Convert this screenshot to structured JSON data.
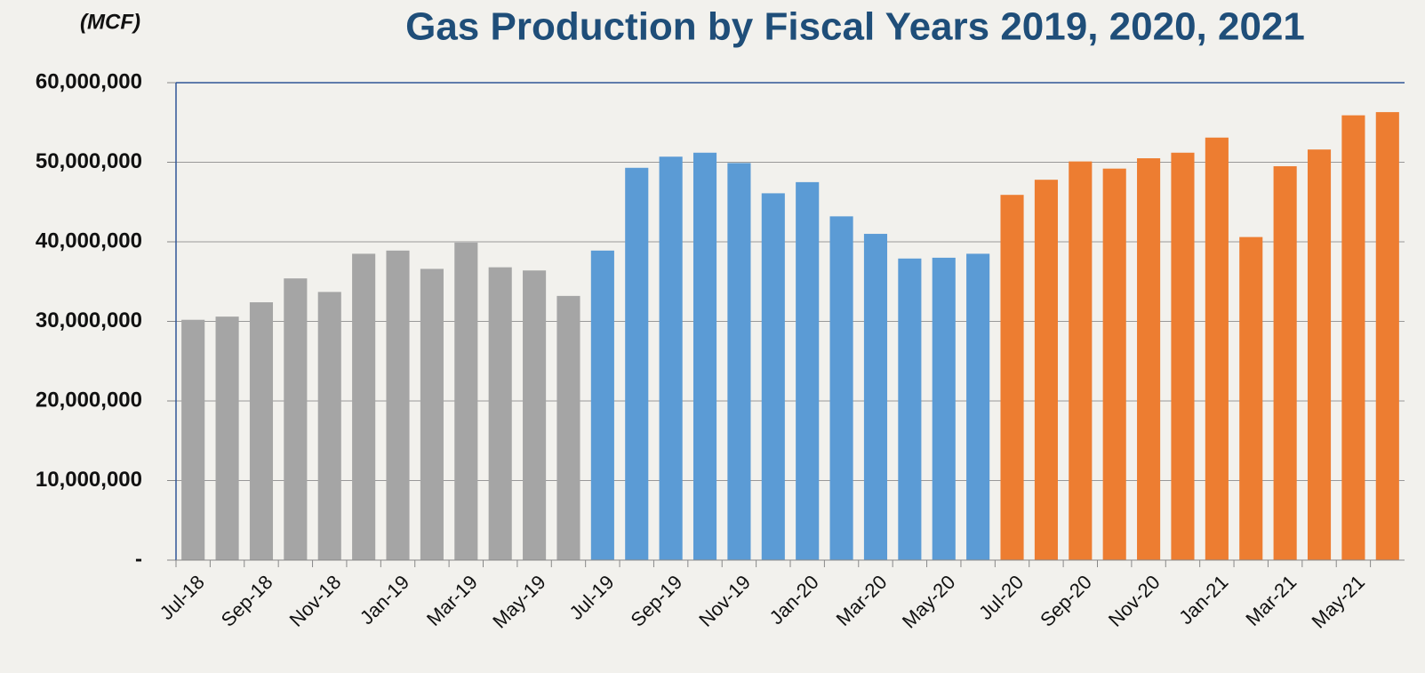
{
  "chart_data": {
    "type": "bar",
    "title": "Gas Production by Fiscal Years 2019, 2020, 2021",
    "y_label": "(MCF)",
    "categories": [
      "Jul-18",
      null,
      "Sep-18",
      null,
      "Nov-18",
      null,
      "Jan-19",
      null,
      "Mar-19",
      null,
      "May-19",
      null,
      "Jul-19",
      null,
      "Sep-19",
      null,
      "Nov-19",
      null,
      "Jan-20",
      null,
      "Mar-20",
      null,
      "May-20",
      null,
      "Jul-20",
      null,
      "Sep-20",
      null,
      "Nov-20",
      null,
      "Jan-21",
      null,
      "Mar-21",
      null,
      "May-21",
      null
    ],
    "values": [
      30200000,
      30600000,
      32400000,
      35400000,
      33700000,
      38500000,
      38900000,
      36600000,
      39900000,
      36800000,
      36400000,
      33200000,
      38900000,
      49300000,
      50700000,
      51200000,
      49900000,
      46100000,
      47500000,
      43200000,
      41000000,
      37900000,
      38000000,
      38500000,
      45900000,
      47800000,
      50100000,
      49200000,
      50500000,
      51200000,
      53100000,
      40600000,
      49500000,
      51600000,
      55900000,
      56300000
    ],
    "colors": [
      "#a5a5a5",
      "#a5a5a5",
      "#a5a5a5",
      "#a5a5a5",
      "#a5a5a5",
      "#a5a5a5",
      "#a5a5a5",
      "#a5a5a5",
      "#a5a5a5",
      "#a5a5a5",
      "#a5a5a5",
      "#a5a5a5",
      "#5b9bd5",
      "#5b9bd5",
      "#5b9bd5",
      "#5b9bd5",
      "#5b9bd5",
      "#5b9bd5",
      "#5b9bd5",
      "#5b9bd5",
      "#5b9bd5",
      "#5b9bd5",
      "#5b9bd5",
      "#5b9bd5",
      "#ed7d31",
      "#ed7d31",
      "#ed7d31",
      "#ed7d31",
      "#ed7d31",
      "#ed7d31",
      "#ed7d31",
      "#ed7d31",
      "#ed7d31",
      "#ed7d31",
      "#ed7d31",
      "#ed7d31"
    ],
    "ylim": [
      0,
      60000000
    ],
    "yticks": [
      {
        "value": 0,
        "label": "-"
      },
      {
        "value": 10000000,
        "label": "10,000,000"
      },
      {
        "value": 20000000,
        "label": "20,000,000"
      },
      {
        "value": 30000000,
        "label": "30,000,000"
      },
      {
        "value": 40000000,
        "label": "40,000,000"
      },
      {
        "value": 50000000,
        "label": "50,000,000"
      },
      {
        "value": 60000000,
        "label": "60,000,000"
      }
    ],
    "grid": true
  }
}
